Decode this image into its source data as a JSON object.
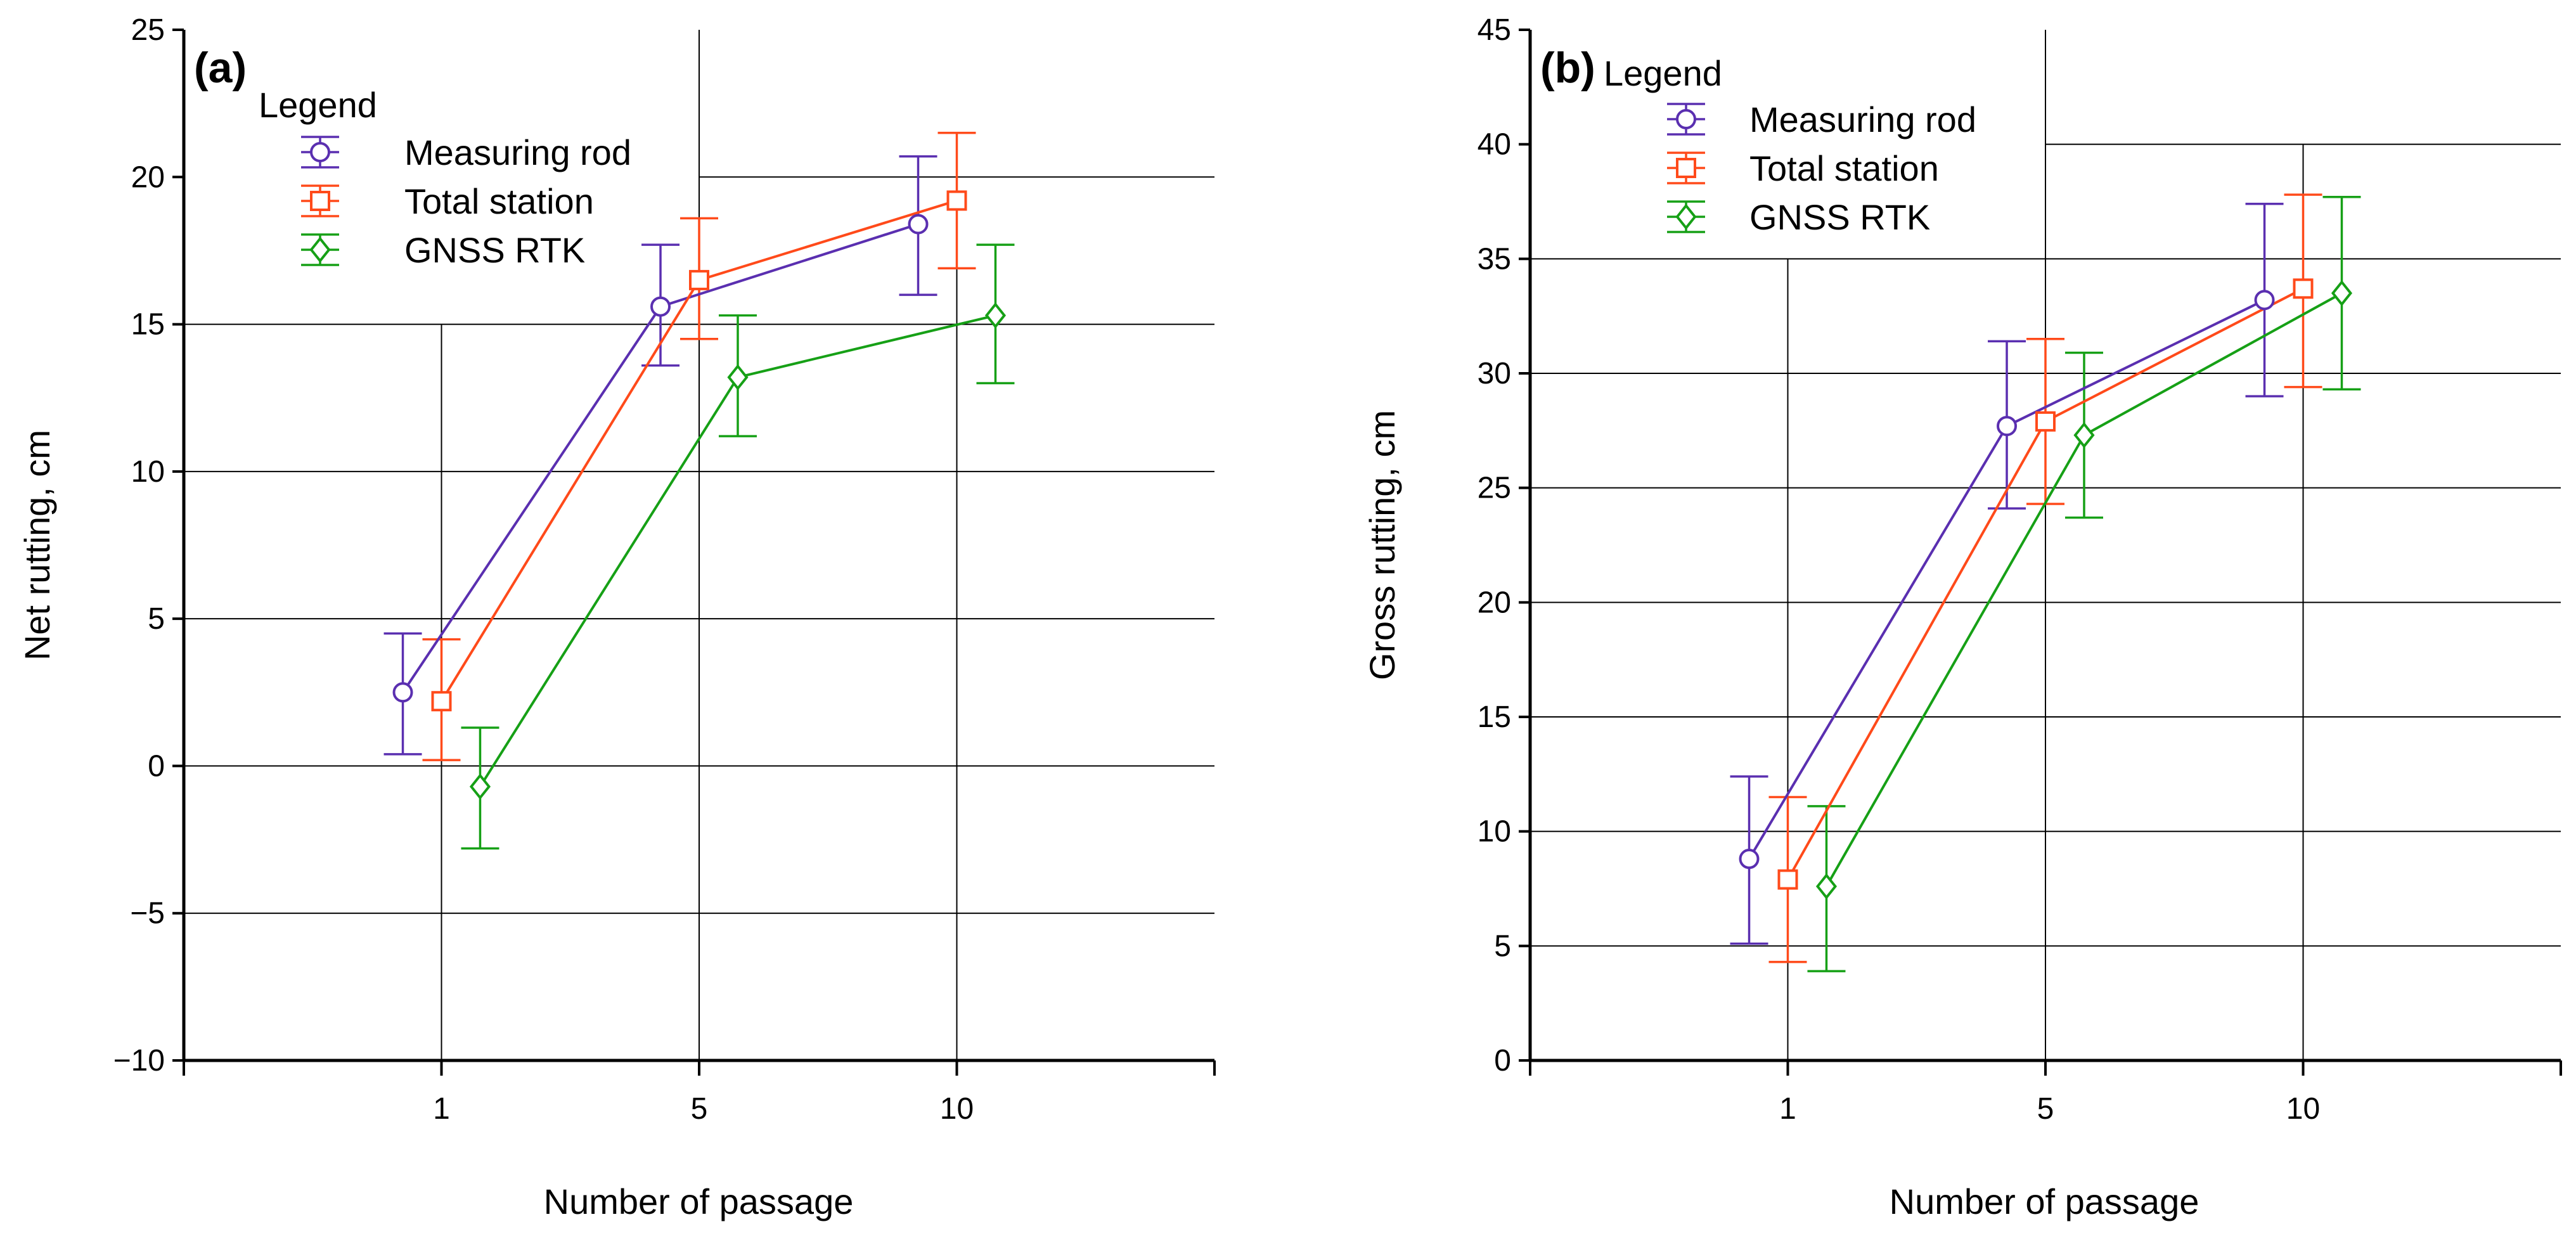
{
  "colors": {
    "measuring_rod": "#5a2fb0",
    "total_station": "#ff4a1a",
    "gnss_rtk": "#16a016",
    "grid": "#000000",
    "axis": "#000000"
  },
  "chart_data": [
    {
      "id": "a",
      "type": "line",
      "panel_label": "(a)",
      "legend_title": "Legend",
      "xlabel": "Number of passage",
      "ylabel": "Net rutting, cm",
      "ylim": [
        -10,
        25
      ],
      "yticks": [
        -10,
        -5,
        0,
        5,
        10,
        15,
        20,
        25
      ],
      "ytick_labels": [
        "−10",
        "−5",
        "0",
        "5",
        "10",
        "15",
        "20",
        "25"
      ],
      "xlim": [
        0,
        4
      ],
      "xticks": [
        1,
        2,
        3
      ],
      "xtick_labels": [
        "1",
        "5",
        "10"
      ],
      "series": [
        {
          "name": "Measuring rod",
          "color_key": "measuring_rod",
          "marker": "circle",
          "x": [
            0.85,
            1.85,
            2.85
          ],
          "y": [
            2.5,
            15.6,
            18.4
          ],
          "err_low": [
            0.4,
            13.6,
            16.0
          ],
          "err_high": [
            4.5,
            17.7,
            20.7
          ]
        },
        {
          "name": "Total station",
          "color_key": "total_station",
          "marker": "square",
          "x": [
            1.0,
            2.0,
            3.0
          ],
          "y": [
            2.2,
            16.5,
            19.2
          ],
          "err_low": [
            0.2,
            14.5,
            16.9
          ],
          "err_high": [
            4.3,
            18.6,
            21.5
          ]
        },
        {
          "name": "GNSS RTK",
          "color_key": "gnss_rtk",
          "marker": "diamond",
          "x": [
            1.15,
            2.15,
            3.15
          ],
          "y": [
            -0.7,
            13.2,
            15.3
          ],
          "err_low": [
            -2.8,
            11.2,
            13.0
          ],
          "err_high": [
            1.3,
            15.3,
            17.7
          ]
        }
      ]
    },
    {
      "id": "b",
      "type": "line",
      "panel_label": "(b)",
      "legend_title": "Legend",
      "xlabel": "Number of passage",
      "ylabel": "Gross rutting, cm",
      "ylim": [
        0,
        45
      ],
      "yticks": [
        0,
        5,
        10,
        15,
        20,
        25,
        30,
        35,
        40,
        45
      ],
      "ytick_labels": [
        "0",
        "5",
        "10",
        "15",
        "20",
        "25",
        "30",
        "35",
        "40",
        "45"
      ],
      "xlim": [
        0,
        4
      ],
      "xticks": [
        1,
        2,
        3
      ],
      "xtick_labels": [
        "1",
        "5",
        "10"
      ],
      "series": [
        {
          "name": "Measuring rod",
          "color_key": "measuring_rod",
          "marker": "circle",
          "x": [
            0.85,
            1.85,
            2.85
          ],
          "y": [
            8.8,
            27.7,
            33.2
          ],
          "err_low": [
            5.1,
            24.1,
            29.0
          ],
          "err_high": [
            12.4,
            31.4,
            37.4
          ]
        },
        {
          "name": "Total station",
          "color_key": "total_station",
          "marker": "square",
          "x": [
            1.0,
            2.0,
            3.0
          ],
          "y": [
            7.9,
            27.9,
            33.7
          ],
          "err_low": [
            4.3,
            24.3,
            29.4
          ],
          "err_high": [
            11.5,
            31.5,
            37.8
          ]
        },
        {
          "name": "GNSS RTK",
          "color_key": "gnss_rtk",
          "marker": "diamond",
          "x": [
            1.15,
            2.15,
            3.15
          ],
          "y": [
            7.6,
            27.3,
            33.5
          ],
          "err_low": [
            3.9,
            23.7,
            29.3
          ],
          "err_high": [
            11.1,
            30.9,
            37.7
          ]
        }
      ]
    }
  ]
}
